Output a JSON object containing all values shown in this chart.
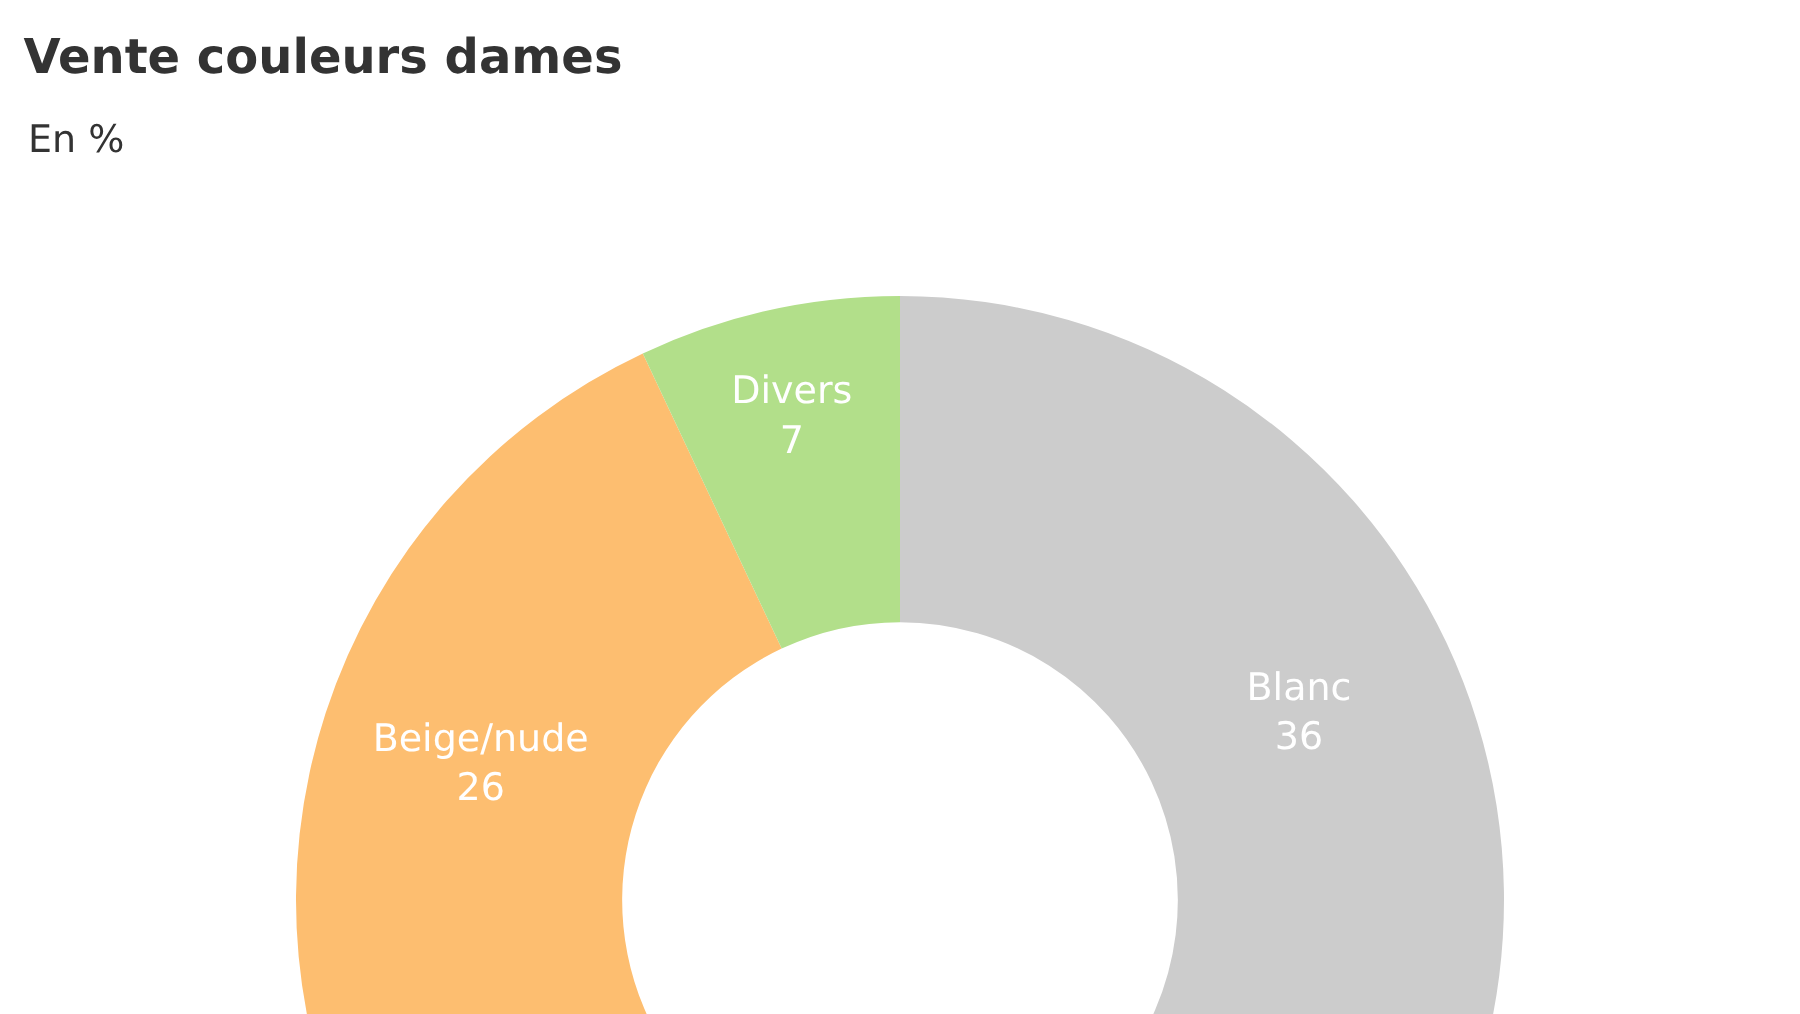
{
  "chart_data": {
    "type": "donut",
    "title": "Vente couleurs dames",
    "subtitle": "En %",
    "categories": [
      "Beige/nude",
      "Divers",
      "Blanc"
    ],
    "values": [
      26,
      7,
      36
    ],
    "colors": [
      "#fdbe70",
      "#b2df8a",
      "#cccccc"
    ],
    "data_labels": true,
    "legend": false
  }
}
